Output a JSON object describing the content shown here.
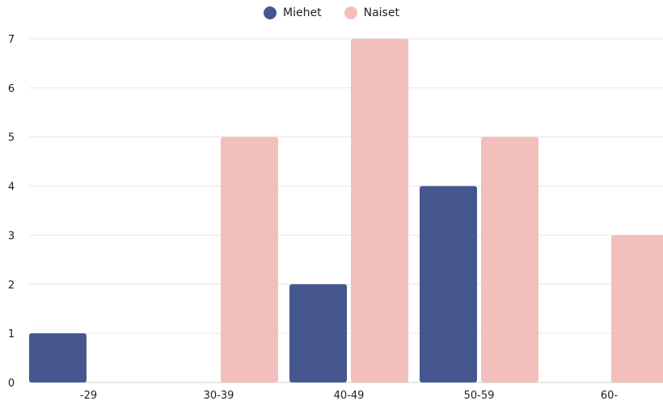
{
  "chart_data": {
    "type": "bar",
    "categories": [
      "-29",
      "30-39",
      "40-49",
      "50-59",
      "60-"
    ],
    "series": [
      {
        "name": "Miehet",
        "values": [
          1,
          0,
          2,
          4,
          0
        ],
        "color": "#46578f"
      },
      {
        "name": "Naiset",
        "values": [
          0,
          5,
          7,
          5,
          3
        ],
        "color": "#f2bfbd"
      }
    ],
    "title": "",
    "xlabel": "",
    "ylabel": "",
    "ylim": [
      0,
      7
    ],
    "yticks": [
      0,
      1,
      2,
      3,
      4,
      5,
      6,
      7
    ],
    "grid": true,
    "legend_position": "top-center",
    "gridline_color": "#e6e6e6"
  }
}
